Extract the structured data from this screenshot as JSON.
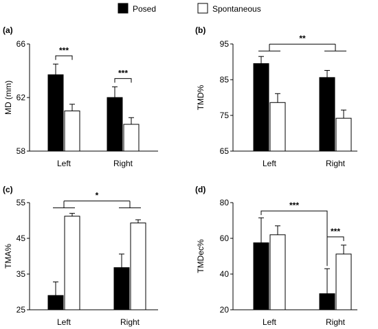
{
  "legend": {
    "items": [
      {
        "label": "Posed",
        "color": "#000000"
      },
      {
        "label": "Spontaneous",
        "color": "#ffffff"
      }
    ]
  },
  "chart_data": [
    {
      "id": "a",
      "panel_label": "(a)",
      "type": "bar",
      "categories": [
        "Left",
        "Right"
      ],
      "series": [
        {
          "name": "Posed",
          "values": [
            63.7,
            62.0
          ],
          "errors": [
            0.8,
            0.8
          ],
          "color": "#000000"
        },
        {
          "name": "Spontaneous",
          "values": [
            61.0,
            60.0
          ],
          "errors": [
            0.5,
            0.5
          ],
          "color": "#ffffff"
        }
      ],
      "ylabel": "MD (mm)",
      "ylim": [
        58,
        66
      ],
      "yticks": [
        58,
        62,
        66
      ],
      "significance": [
        {
          "kind": "within",
          "category": 0,
          "label": "***"
        },
        {
          "kind": "within",
          "category": 1,
          "label": "***"
        }
      ]
    },
    {
      "id": "b",
      "panel_label": "(b)",
      "type": "bar",
      "categories": [
        "Left",
        "Right"
      ],
      "series": [
        {
          "name": "Posed",
          "values": [
            89.5,
            85.6
          ],
          "errors": [
            2.0,
            2.0
          ],
          "color": "#000000"
        },
        {
          "name": "Spontaneous",
          "values": [
            78.6,
            74.2
          ],
          "errors": [
            2.5,
            2.3
          ],
          "color": "#ffffff"
        }
      ],
      "ylabel": "TMD%",
      "ylim": [
        65,
        95
      ],
      "yticks": [
        65,
        75,
        85,
        95
      ],
      "significance": [
        {
          "kind": "between",
          "label": "**"
        }
      ]
    },
    {
      "id": "c",
      "panel_label": "(c)",
      "type": "bar",
      "categories": [
        "Left",
        "Right"
      ],
      "series": [
        {
          "name": "Posed",
          "values": [
            29.0,
            36.8
          ],
          "errors": [
            3.8,
            3.8
          ],
          "color": "#000000"
        },
        {
          "name": "Spontaneous",
          "values": [
            51.2,
            49.3
          ],
          "errors": [
            0.8,
            0.9
          ],
          "color": "#ffffff"
        }
      ],
      "ylabel": "TMA%",
      "ylim": [
        25,
        55
      ],
      "yticks": [
        25,
        35,
        45,
        55
      ],
      "significance": [
        {
          "kind": "between",
          "label": "*"
        }
      ]
    },
    {
      "id": "d",
      "panel_label": "(d)",
      "type": "bar",
      "categories": [
        "Left",
        "Right"
      ],
      "series": [
        {
          "name": "Posed",
          "values": [
            57.5,
            29.0
          ],
          "errors": [
            14.0,
            14.0
          ],
          "color": "#000000"
        },
        {
          "name": "Spontaneous",
          "values": [
            62.0,
            51.2
          ],
          "errors": [
            5.0,
            5.0
          ],
          "color": "#ffffff"
        }
      ],
      "ylabel": "TMDec%",
      "ylim": [
        20,
        80
      ],
      "yticks": [
        20,
        40,
        60,
        80
      ],
      "significance": [
        {
          "kind": "cross",
          "label": "***"
        },
        {
          "kind": "within",
          "category": 1,
          "label": "***"
        }
      ]
    }
  ]
}
